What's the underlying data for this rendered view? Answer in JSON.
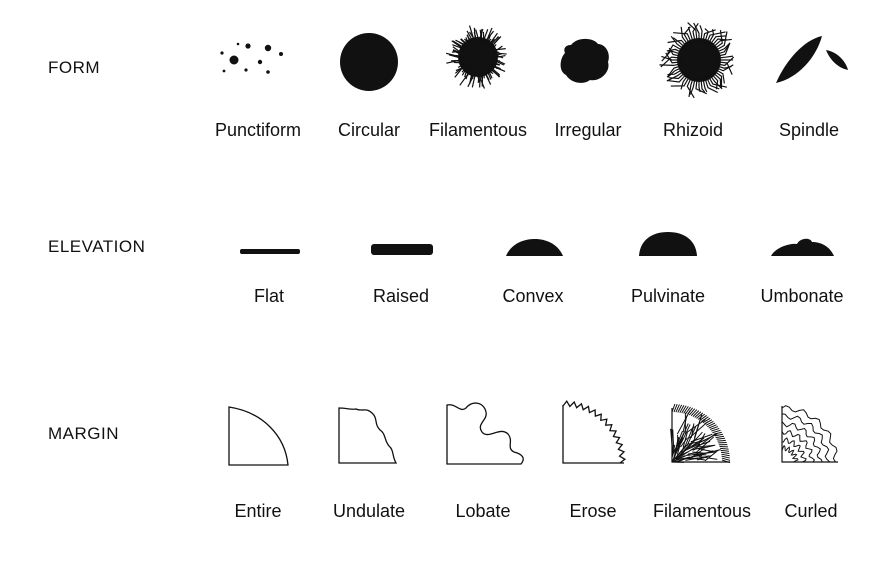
{
  "sections": [
    {
      "id": "form",
      "label": "FORM",
      "items": [
        {
          "name": "Punctiform"
        },
        {
          "name": "Circular"
        },
        {
          "name": "Filamentous"
        },
        {
          "name": "Irregular"
        },
        {
          "name": "Rhizoid"
        },
        {
          "name": "Spindle"
        }
      ]
    },
    {
      "id": "elevation",
      "label": "ELEVATION",
      "items": [
        {
          "name": "Flat"
        },
        {
          "name": "Raised"
        },
        {
          "name": "Convex"
        },
        {
          "name": "Pulvinate"
        },
        {
          "name": "Umbonate"
        }
      ]
    },
    {
      "id": "margin",
      "label": "MARGIN",
      "items": [
        {
          "name": "Entire"
        },
        {
          "name": "Undulate"
        },
        {
          "name": "Lobate"
        },
        {
          "name": "Erose"
        },
        {
          "name": "Filamentous"
        },
        {
          "name": "Curled"
        }
      ]
    }
  ],
  "colors": {
    "ink": "#111111",
    "background": "#ffffff"
  }
}
